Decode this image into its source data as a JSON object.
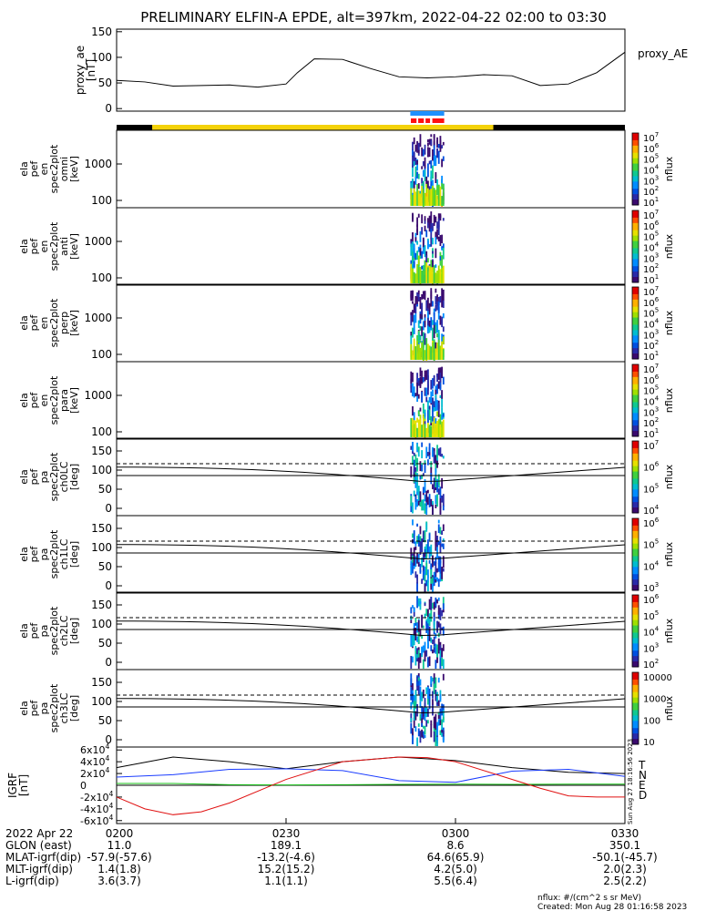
{
  "title": "PRELIMINARY ELFIN-A EPDE, alt=397km, 2022-04-22 02:00 to 03:30",
  "colors": {
    "sci_zone_blue": "#1e90ff",
    "sci_zone_red": "#ff1010",
    "ephem_yellow": "#f4d20a",
    "ephem_black": "#000000",
    "T": "#000000",
    "N": "#1a3cff",
    "E": "#19c219",
    "D": "#e01010"
  },
  "chart_data": [
    {
      "type": "line",
      "panel": "proxy_ae",
      "ylabel_lines": [
        "proxy_ae",
        "[nT]"
      ],
      "series": [
        {
          "name": "proxy_AE",
          "x": [
            0,
            5,
            10,
            15,
            20,
            25,
            30,
            32,
            35,
            40,
            45,
            50,
            55,
            60,
            65,
            70,
            75,
            80,
            85,
            90
          ],
          "values": [
            55,
            52,
            44,
            45,
            46,
            42,
            48,
            70,
            97,
            96,
            78,
            62,
            60,
            62,
            66,
            64,
            45,
            48,
            70,
            110
          ]
        }
      ],
      "ylim": [
        -5,
        155
      ],
      "yticks": [
        0,
        50,
        100,
        150
      ],
      "ytick_labels": [
        "0",
        "50",
        "100",
        "150"
      ]
    },
    {
      "type": "heatmap",
      "panel": "spectrogram",
      "rows": [
        {
          "ylabel_lines": [
            "ela",
            "pef",
            "en",
            "spec2plot",
            "omni",
            "[keV]"
          ],
          "yticks": [
            "1000",
            "100"
          ],
          "cbar_labels": [
            "10^7",
            "10^6",
            "10^5",
            "10^4",
            "10^3",
            "10^2",
            "10^1"
          ],
          "cbar_title": "nflux"
        },
        {
          "ylabel_lines": [
            "ela",
            "pef",
            "en",
            "spec2plot",
            "anti",
            "[keV]"
          ],
          "yticks": [
            "1000",
            "100"
          ],
          "cbar_labels": [
            "10^7",
            "10^6",
            "10^5",
            "10^4",
            "10^3",
            "10^2",
            "10^1"
          ],
          "cbar_title": "nflux"
        },
        {
          "ylabel_lines": [
            "ela",
            "pef",
            "en",
            "spec2plot",
            "perp",
            "[keV]"
          ],
          "yticks": [
            "1000",
            "100"
          ],
          "cbar_labels": [
            "10^7",
            "10^6",
            "10^5",
            "10^4",
            "10^3",
            "10^2",
            "10^1"
          ],
          "cbar_title": "nflux"
        },
        {
          "ylabel_lines": [
            "ela",
            "pef",
            "en",
            "spec2plot",
            "para",
            "[keV]"
          ],
          "yticks": [
            "1000",
            "100"
          ],
          "cbar_labels": [
            "10^7",
            "10^6",
            "10^5",
            "10^4",
            "10^3",
            "10^2",
            "10^1"
          ],
          "cbar_title": "nflux"
        },
        {
          "ylabel_lines": [
            "ela",
            "pef",
            "pa",
            "spec2plot",
            "ch0LC",
            "[deg]"
          ],
          "yticks": [
            "150",
            "100",
            "50",
            "0"
          ],
          "cbar_labels": [
            "10^7",
            "10^6",
            "10^5",
            "10^4"
          ],
          "cbar_title": "nflux"
        },
        {
          "ylabel_lines": [
            "ela",
            "pef",
            "pa",
            "spec2plot",
            "ch1LC",
            "[deg]"
          ],
          "yticks": [
            "150",
            "100",
            "50",
            "0"
          ],
          "cbar_labels": [
            "10^6",
            "10^5",
            "10^4",
            "10^3"
          ],
          "cbar_title": "nflux"
        },
        {
          "ylabel_lines": [
            "ela",
            "pef",
            "pa",
            "spec2plot",
            "ch2LC",
            "[deg]"
          ],
          "yticks": [
            "150",
            "100",
            "50",
            "0"
          ],
          "cbar_labels": [
            "10^6",
            "10^5",
            "10^4",
            "10^3",
            "10^2"
          ],
          "cbar_title": "nflux"
        },
        {
          "ylabel_lines": [
            "ela",
            "pef",
            "pa",
            "spec2plot",
            "ch3LC",
            "[deg]"
          ],
          "yticks": [
            "150",
            "100",
            "50",
            "0"
          ],
          "cbar_labels": [
            "10000",
            "1000",
            "100",
            "10"
          ],
          "cbar_title": "nflux"
        }
      ],
      "data_window_minutes": [
        51,
        58
      ]
    },
    {
      "type": "line",
      "panel": "igrf",
      "ylabel_lines": [
        "IGRF",
        "[nT]"
      ],
      "ytick_labels": [
        "6x10^4",
        "4x10^4",
        "2x10^4",
        "0",
        "-2x10^4",
        "-4x10^4",
        "-6x10^4"
      ],
      "ylim": [
        -65000,
        65000
      ],
      "series": [
        {
          "name": "T",
          "x": [
            0,
            10,
            20,
            30,
            40,
            50,
            60,
            70,
            80,
            90
          ],
          "values": [
            30000,
            48000,
            40000,
            28000,
            40000,
            48000,
            42000,
            30000,
            22000,
            20000
          ]
        },
        {
          "name": "N",
          "x": [
            0,
            10,
            20,
            30,
            40,
            50,
            60,
            70,
            80,
            90
          ],
          "values": [
            14000,
            18000,
            27000,
            28000,
            25000,
            8000,
            5000,
            24000,
            27000,
            15000
          ]
        },
        {
          "name": "E",
          "x": [
            0,
            10,
            20,
            30,
            40,
            50,
            60,
            70,
            80,
            90
          ],
          "values": [
            3000,
            3000,
            1000,
            500,
            1000,
            1500,
            2000,
            1500,
            2000,
            2000
          ]
        },
        {
          "name": "D",
          "x": [
            0,
            5,
            10,
            15,
            20,
            30,
            40,
            50,
            55,
            60,
            70,
            75,
            80,
            85,
            90
          ],
          "values": [
            -20000,
            -40000,
            -50000,
            -45000,
            -30000,
            10000,
            40000,
            48000,
            47000,
            40000,
            10000,
            -5000,
            -18000,
            -20000,
            -20000
          ]
        }
      ]
    }
  ],
  "igrf_legend": [
    "T",
    "N",
    "E",
    "D"
  ],
  "proxy_label": "proxy_AE",
  "xaxis": {
    "rows": [
      {
        "label": "2022 Apr 22",
        "values": [
          "0200",
          "0230",
          "0300",
          "0330"
        ]
      },
      {
        "label": "GLON (east)",
        "values": [
          "11.0",
          "189.1",
          "8.6",
          "350.1"
        ]
      },
      {
        "label": "MLAT-igrf(dip)",
        "values": [
          "-57.9(-57.6)",
          "-13.2(-4.6)",
          "64.6(65.9)",
          "-50.1(-45.7)"
        ]
      },
      {
        "label": "MLT-igrf(dip)",
        "values": [
          "1.4(1.8)",
          "15.2(15.2)",
          "4.2(5.0)",
          "2.0(2.3)"
        ]
      },
      {
        "label": "L-igrf(dip)",
        "values": [
          "3.6(3.7)",
          "1.1(1.1)",
          "5.5(6.4)",
          "2.5(2.2)"
        ]
      }
    ]
  },
  "side_stamp": "Sun Aug 27 18:16:56 2023",
  "footer": {
    "units": "nflux: #/(cm^2 s sr MeV)",
    "created": "Created: Mon Aug 28 01:16:58 2023"
  }
}
